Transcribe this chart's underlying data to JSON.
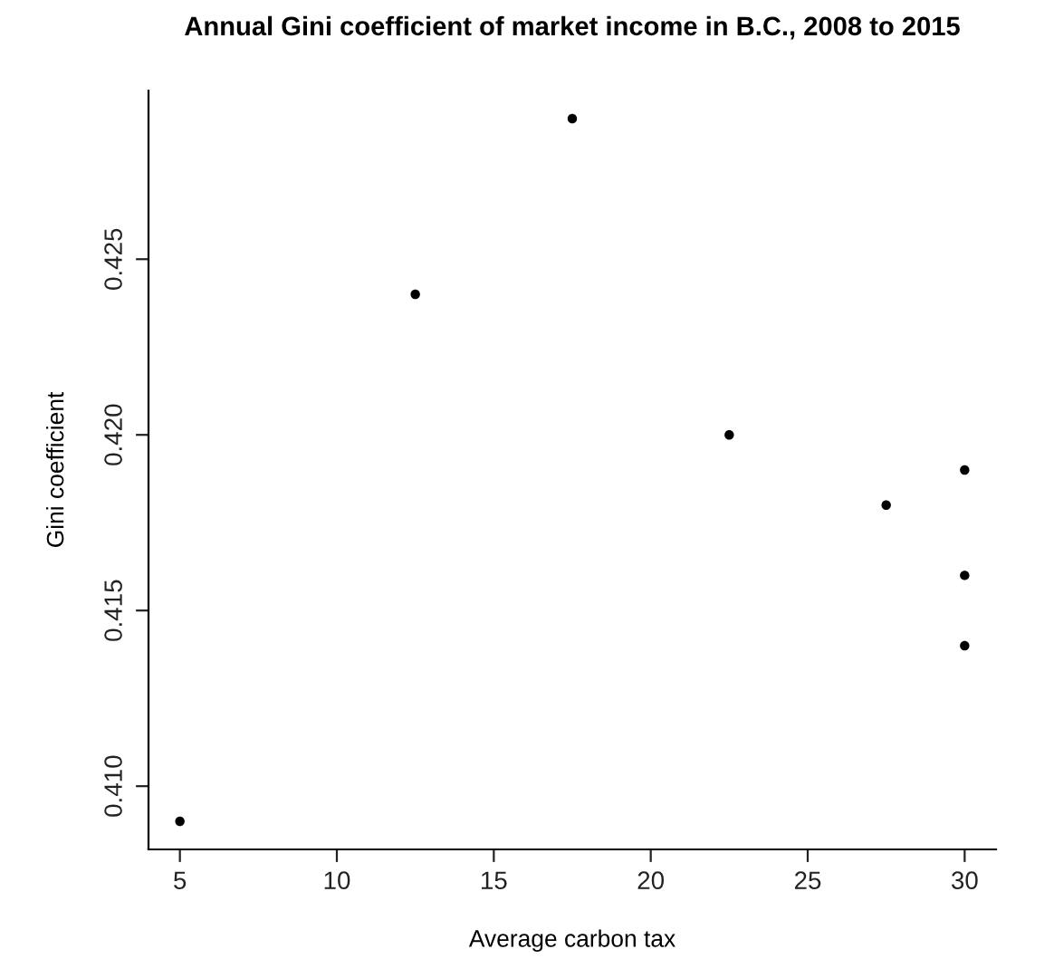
{
  "chart_data": {
    "type": "scatter",
    "title": "Annual Gini coefficient of market income in B.C., 2008 to 2015",
    "xlabel": "Average carbon tax",
    "ylabel": "Gini coefficient",
    "x": [
      5,
      12.5,
      17.5,
      22.5,
      27.5,
      30,
      30,
      30
    ],
    "values": [
      0.409,
      0.424,
      0.429,
      0.42,
      0.418,
      0.419,
      0.416,
      0.414
    ],
    "color": "#000000",
    "marker": "circle",
    "xlim": [
      4,
      31
    ],
    "ylim": [
      0.4082,
      0.4298
    ],
    "xticks": [
      5,
      10,
      15,
      20,
      25,
      30
    ],
    "yticks": [
      {
        "value": 0.41,
        "label": "0.410"
      },
      {
        "value": 0.415,
        "label": "0.415"
      },
      {
        "value": 0.42,
        "label": "0.420"
      },
      {
        "value": 0.425,
        "label": "0.425"
      }
    ],
    "grid": false,
    "legend": false
  }
}
